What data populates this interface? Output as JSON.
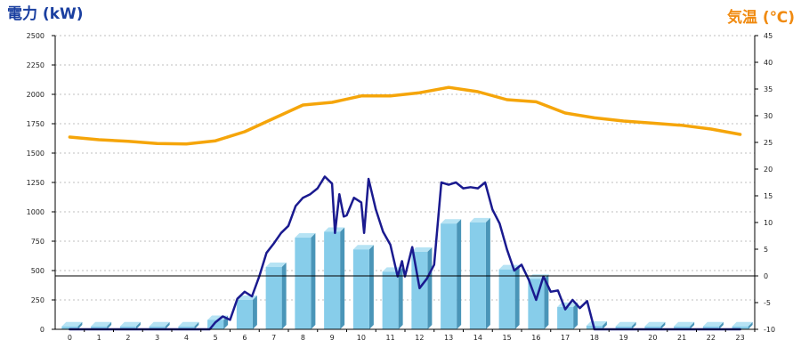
{
  "chart_data": {
    "type": "bar",
    "y_left_title": "電力 (kW)",
    "y_right_title": "気温 (℃)",
    "categories": [
      "0",
      "1",
      "2",
      "3",
      "4",
      "5",
      "6",
      "7",
      "8",
      "9",
      "10",
      "11",
      "12",
      "13",
      "14",
      "15",
      "16",
      "17",
      "18",
      "19",
      "20",
      "21",
      "22",
      "23"
    ],
    "y_left_ticks": [
      "0",
      "250",
      "500",
      "750",
      "1000",
      "1250",
      "1500",
      "1750",
      "2000",
      "2250",
      "2500"
    ],
    "y_right_ticks": [
      "-10",
      "-5",
      "0",
      "5",
      "10",
      "15",
      "20",
      "25",
      "30",
      "35",
      "40",
      "45"
    ],
    "ylim_left": [
      0,
      2500
    ],
    "ylim_right": [
      -10,
      45
    ],
    "grid": true,
    "series": [
      {
        "kind": "bar",
        "axis": "left",
        "values": [
          25,
          25,
          25,
          25,
          25,
          80,
          250,
          530,
          780,
          830,
          680,
          490,
          660,
          900,
          910,
          510,
          430,
          190,
          30,
          25,
          25,
          25,
          25,
          25
        ]
      },
      {
        "kind": "line",
        "axis": "left",
        "x": [
          0,
          1,
          2,
          3,
          4,
          4.8,
          5,
          5.25,
          5.5,
          5.75,
          6,
          6.25,
          6.5,
          6.75,
          7,
          7.25,
          7.5,
          7.75,
          8,
          8.25,
          8.5,
          8.75,
          9,
          9.1,
          9.25,
          9.4,
          9.5,
          9.75,
          10,
          10.1,
          10.25,
          10.5,
          10.75,
          11,
          11.25,
          11.4,
          11.5,
          11.75,
          12,
          12.25,
          12.5,
          12.75,
          13,
          13.25,
          13.5,
          13.75,
          14,
          14.25,
          14.5,
          14.75,
          15,
          15.25,
          15.5,
          15.75,
          16,
          16.25,
          16.5,
          16.75,
          17,
          17.25,
          17.5,
          17.75,
          18,
          19,
          20,
          21,
          22,
          23
        ],
        "values": [
          0,
          0,
          0,
          0,
          0,
          0,
          60,
          110,
          80,
          260,
          320,
          280,
          450,
          650,
          730,
          820,
          880,
          1050,
          1120,
          1150,
          1200,
          1300,
          1240,
          820,
          1150,
          960,
          970,
          1120,
          1080,
          820,
          1280,
          1020,
          830,
          720,
          450,
          580,
          450,
          700,
          350,
          430,
          550,
          1250,
          1230,
          1250,
          1200,
          1210,
          1200,
          1250,
          1020,
          900,
          680,
          500,
          550,
          420,
          250,
          450,
          320,
          330,
          170,
          250,
          180,
          240,
          0,
          0,
          0,
          0,
          0,
          0
        ]
      },
      {
        "kind": "line",
        "axis": "right",
        "x": [
          0,
          1,
          2,
          3,
          4,
          5,
          6,
          7,
          8,
          9,
          10,
          11,
          12,
          13,
          14,
          15,
          16,
          17,
          18,
          19,
          20,
          21,
          22,
          23
        ],
        "values": [
          26,
          25.5,
          25.2,
          24.8,
          24.7,
          25.3,
          27,
          29.5,
          32,
          32.5,
          33.7,
          33.7,
          34.3,
          35.3,
          34.5,
          33,
          32.6,
          30.5,
          29.6,
          29,
          28.6,
          28.2,
          27.5,
          26.5
        ]
      }
    ]
  },
  "colors": {
    "bar_face": "#87cdea",
    "bar_side": "#4a95b8",
    "bar_top": "#b6e3f4",
    "power_line": "#1a1a8f",
    "temp_line": "#f5a50a",
    "left_title": "#1a3fa0",
    "right_title": "#f08a10",
    "grid": "#aaaaaa",
    "zero_line": "#000000"
  }
}
